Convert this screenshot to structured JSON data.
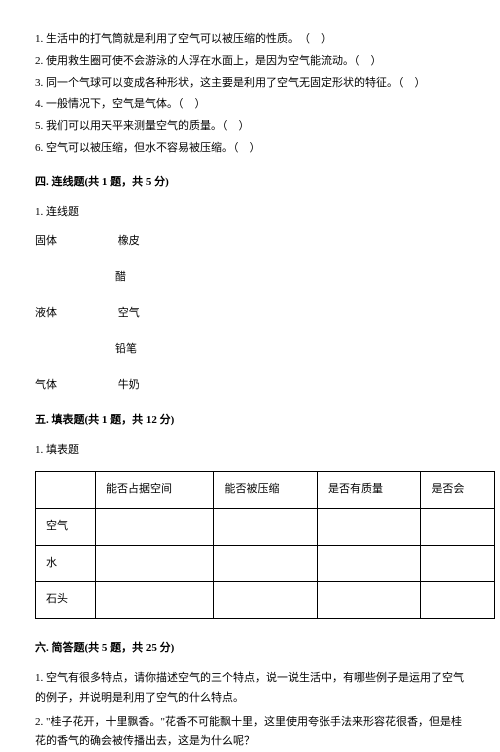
{
  "trueFalse": {
    "items": [
      "1. 生活中的打气筒就是利用了空气可以被压缩的性质。　（　）",
      "2. 使用救生圈可使不会游泳的人浮在水面上，是因为空气能流动。（　）",
      "3. 同一个气球可以变成各种形状，这主要是利用了空气无固定形状的特征。（　）",
      "4. 一般情况下，空气是气体。（　）",
      "5. 我们可以用天平来测量空气的质量。（　）",
      "6. 空气可以被压缩，但水不容易被压缩。（　）"
    ]
  },
  "section4": {
    "header": "四. 连线题(共 1 题，共 5 分)",
    "question": "1. 连线题",
    "matches": [
      {
        "left": "固体",
        "right": "橡皮"
      },
      {
        "left": "",
        "right": "醋"
      },
      {
        "left": "液体",
        "right": "空气"
      },
      {
        "left": "",
        "right": "铅笔"
      },
      {
        "left": "气体",
        "right": "牛奶"
      }
    ]
  },
  "section5": {
    "header": "五. 填表题(共 1 题，共 12 分)",
    "question": "1. 填表题",
    "table": {
      "headers": [
        "",
        "能否占据空间",
        "能否被压缩",
        "是否有质量",
        "是否会"
      ],
      "rows": [
        "空气",
        "水",
        "石头"
      ]
    }
  },
  "section6": {
    "header": "六. 简答题(共 5 题，共 25 分)",
    "questions": [
      "1. 空气有很多特点，请你描述空气的三个特点，说一说生活中，有哪些例子是运用了空气的例子，并说明是利用了空气的什么特点。",
      "2. \"桂子花开，十里飘香。\"花香不可能飘十里，这里使用夸张手法来形容花很香，但是桂花的香气的确会被传播出去，这是为什么呢？"
    ]
  }
}
